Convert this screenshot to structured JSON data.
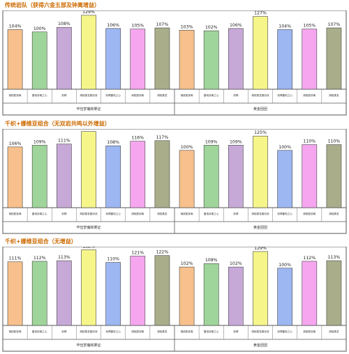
{
  "chart_data": [
    {
      "type": "bar",
      "title": "传统岩队（获得六金五部及钟离增益）",
      "groups": [
        "毕伍梦魔和雾证",
        "黄金团团"
      ],
      "categories": [
        "胡桃配钟离",
        "雷电钟离之心",
        "刻晴",
        "胡桃蒸发魔剑双",
        "刻晴雷电之心",
        "胡桃配钟离",
        "胡桃蒸发"
      ],
      "series": [
        {
          "values": [
            104,
            100,
            108,
            129,
            106,
            105,
            107
          ]
        },
        {
          "values": [
            103,
            102,
            106,
            127,
            104,
            105,
            107
          ]
        }
      ],
      "ylim": [
        0,
        135
      ]
    },
    {
      "type": "bar",
      "title": "千织+娜维亚组合（无双岩共鸣以外增益）",
      "groups": [
        "毕伍梦魔和雾证",
        "黄金团团"
      ],
      "categories": [
        "胡桃配钟离",
        "雷电钟离之心",
        "刻晴",
        "胡桃蒸发魔剑双",
        "刻晴雷电之心",
        "胡桃配钟离",
        "胡桃蒸发"
      ],
      "series": [
        {
          "values": [
            106,
            109,
            111,
            133,
            108,
            116,
            117
          ]
        },
        {
          "values": [
            100,
            109,
            109,
            125,
            100,
            110,
            110
          ]
        }
      ],
      "ylim": [
        0,
        135
      ]
    },
    {
      "type": "bar",
      "title": "千织+娜维亚组合（无增益）",
      "groups": [
        "毕伍梦魔和雾证",
        "黄金团团"
      ],
      "categories": [
        "胡桃配钟离",
        "雷电钟离之心",
        "刻晴",
        "胡桃蒸发魔剑双",
        "刻晴雷电之心",
        "胡桃配钟离",
        "胡桃蒸发"
      ],
      "series": [
        {
          "values": [
            111,
            112,
            113,
            132,
            110,
            121,
            122
          ]
        },
        {
          "values": [
            102,
            108,
            102,
            129,
            100,
            112,
            113
          ]
        }
      ],
      "ylim": [
        0,
        135
      ]
    }
  ],
  "colors": [
    "#f7c08c",
    "#9fd59a",
    "#c7a9d8",
    "#f6f58a",
    "#9db7f2",
    "#f5a6ef",
    "#a9ad8a"
  ],
  "value_suffix": "%"
}
